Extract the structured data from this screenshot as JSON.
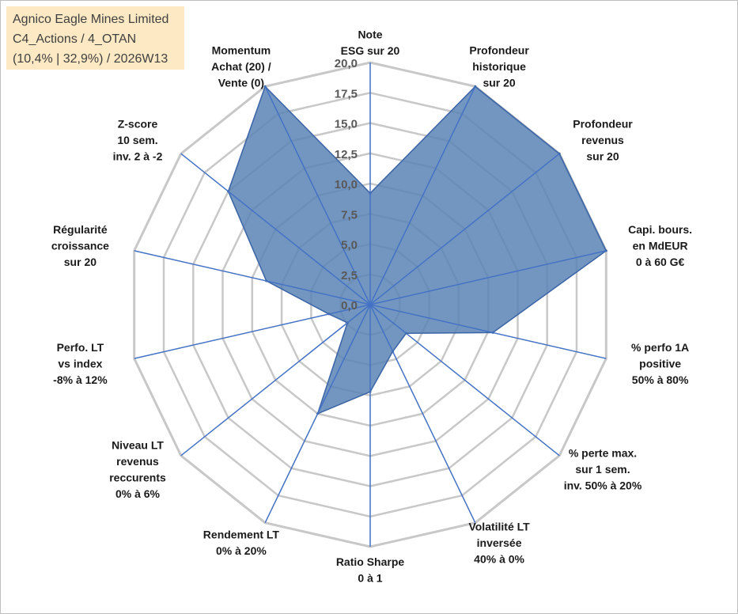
{
  "info": {
    "company": "Agnico Eagle Mines Limited",
    "category": "C4_Actions / 4_OTAN",
    "stats": "(10,4% | 32,9%) / 2026W13"
  },
  "colors": {
    "fill": "#5b84b6",
    "stroke": "#3a64a6",
    "spoke": "#4472c4",
    "grid": "#c8c8c8"
  },
  "chart_data": {
    "type": "radar",
    "title": "",
    "rmin": 0,
    "rmax": 20,
    "ticks": [
      "0,0",
      "2,5",
      "5,0",
      "7,5",
      "10,0",
      "12,5",
      "15,0",
      "17,5",
      "20,0"
    ],
    "tick_values": [
      0,
      2.5,
      5,
      7.5,
      10,
      12.5,
      15,
      17.5,
      20
    ],
    "axes": [
      {
        "label": [
          "Note",
          "ESG sur 20"
        ],
        "value": 9.2
      },
      {
        "label": [
          "Profondeur",
          "historique",
          "sur 20"
        ],
        "value": 20
      },
      {
        "label": [
          "Profondeur",
          "revenus",
          "sur 20"
        ],
        "value": 20
      },
      {
        "label": [
          "Capi. bours.",
          "en MdEUR",
          "0 à 60 G€"
        ],
        "value": 20
      },
      {
        "label": [
          "% perfo 1A",
          "positive",
          "50% à 80%"
        ],
        "value": 10.4
      },
      {
        "label": [
          "% perte max.",
          "sur 1 sem.",
          "inv. 50% à 20%"
        ],
        "value": 3.8
      },
      {
        "label": [
          "Volatilité LT",
          "inversée",
          "40% à 0%"
        ],
        "value": 4.3
      },
      {
        "label": [
          "Ratio Sharpe",
          "0 à 1"
        ],
        "value": 7.2
      },
      {
        "label": [
          "Rendement LT",
          "0% à 20%"
        ],
        "value": 10.0
      },
      {
        "label": [
          "Niveau LT",
          "revenus",
          "reccurents",
          "0% à 6%"
        ],
        "value": 2.4
      },
      {
        "label": [
          "Perfo. LT",
          "vs index",
          "-8% à 12%"
        ],
        "value": 3.5
      },
      {
        "label": [
          "Régularité",
          "croissance",
          "sur 20"
        ],
        "value": 8.8
      },
      {
        "label": [
          "Z-score",
          "10 sem.",
          "inv. 2 à -2"
        ],
        "value": 15.0
      },
      {
        "label": [
          "Momentum",
          "Achat (20) /",
          "Vente (0)"
        ],
        "value": 20
      }
    ]
  }
}
